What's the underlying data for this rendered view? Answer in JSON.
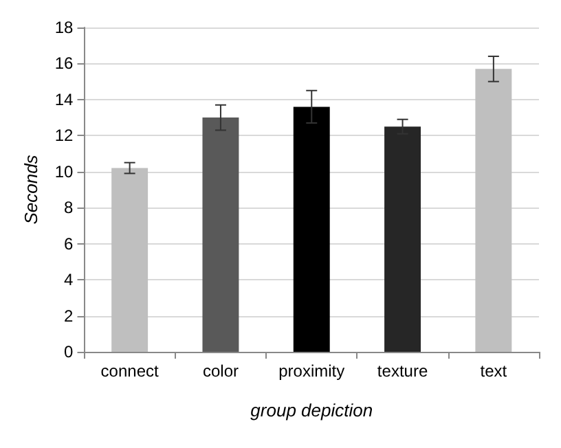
{
  "chart_data": {
    "type": "bar",
    "xlabel": "group depiction",
    "ylabel": "Seconds",
    "categories": [
      "connect",
      "color",
      "proximity",
      "texture",
      "text"
    ],
    "values": [
      10.2,
      13.0,
      13.6,
      12.5,
      15.7
    ],
    "colors": [
      "#bfbfbf",
      "#595959",
      "#000000",
      "#262626",
      "#bfbfbf"
    ],
    "errors": [
      0.3,
      0.7,
      0.9,
      0.4,
      0.7
    ],
    "ylim": [
      0,
      18
    ],
    "yticks": [
      0,
      2,
      4,
      6,
      8,
      10,
      12,
      14,
      16,
      18
    ],
    "grid": "y"
  }
}
